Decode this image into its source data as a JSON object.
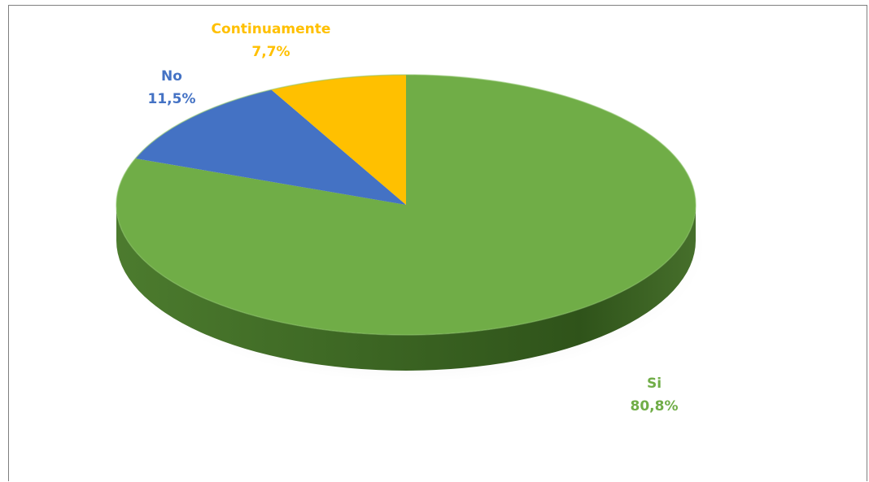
{
  "chart_data": {
    "type": "pie",
    "title": "",
    "slices": [
      {
        "label": "Si",
        "value": 80.8,
        "display": "80,8%",
        "color": "#70AD47"
      },
      {
        "label": "No",
        "value": 11.5,
        "display": "11,5%",
        "color": "#4472C4"
      },
      {
        "label": "Continuamente",
        "value": 7.7,
        "display": "7,7%",
        "color": "#FFC000"
      }
    ],
    "style": "3d-pie",
    "legend": "none"
  }
}
